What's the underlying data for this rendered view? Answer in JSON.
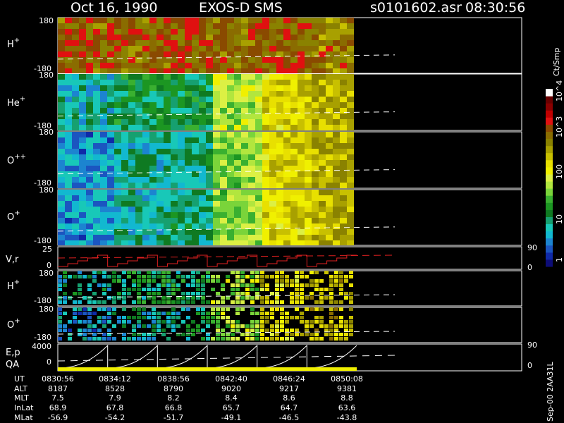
{
  "header": {
    "date": "Oct 16, 1990",
    "instrument": "EXOS-D SMS",
    "file": "s0101602.asr",
    "time": "08:30:56"
  },
  "colorbar": {
    "unit": "Ct/Smp",
    "labels": [
      "1",
      "10",
      "100",
      "10^3",
      "10^4"
    ],
    "colors": [
      "#0d0d78",
      "#0f2aa8",
      "#1b55c0",
      "#1c84d0",
      "#12b8d0",
      "#18c8b8",
      "#16a070",
      "#0f7a22",
      "#1c9622",
      "#3ab030",
      "#7ad43a",
      "#b2e63e",
      "#dcf044",
      "#f0f000",
      "#e8e000",
      "#c8c000",
      "#a8a000",
      "#8a8200",
      "#8a6c00",
      "#8a4a00",
      "#e01010",
      "#c00000",
      "#8a0000",
      "#6a0000",
      "#ffffff"
    ]
  },
  "panels": [
    {
      "id": "h-plus",
      "label": "H+",
      "sup": "+",
      "base": "H",
      "ymax": "180",
      "ymin": "-180"
    },
    {
      "id": "he-plus",
      "label": "He+",
      "sup": "+",
      "base": "He",
      "ymax": "180",
      "ymin": "-180"
    },
    {
      "id": "o-plusplus",
      "label": "O++",
      "sup": "++",
      "base": "O",
      "ymax": "180",
      "ymin": "-180"
    },
    {
      "id": "o-plus",
      "label": "O+",
      "sup": "+",
      "base": "O",
      "ymax": "180",
      "ymin": "-180"
    }
  ],
  "vr_panel": {
    "label": "V,r",
    "ymax_left": "25",
    "ymin_left": "0",
    "ymax_right": "90",
    "ymin_right": "0"
  },
  "small_panels": [
    {
      "id": "h-plus-2",
      "base": "H",
      "sup": "+",
      "ymax": "180",
      "ymin": "-180"
    },
    {
      "id": "o-plus-2",
      "base": "O",
      "sup": "+",
      "ymax": "180",
      "ymin": "-180"
    }
  ],
  "ep_panel": {
    "label": "E,p",
    "ymax_left": "4000",
    "ymin_left": "0",
    "ymax_right": "90",
    "ymin_right": "0"
  },
  "qa_label": "QA",
  "footer": {
    "row_labels": [
      "UT",
      "ALT",
      "MLT",
      "InLat",
      "MLat"
    ],
    "columns": [
      {
        "UT": "0830:56",
        "ALT": "8187",
        "MLT": "7.5",
        "InLat": "68.9",
        "MLat": "-56.9"
      },
      {
        "UT": "0834:12",
        "ALT": "8528",
        "MLT": "7.9",
        "InLat": "67.8",
        "MLat": "-54.2"
      },
      {
        "UT": "0838:56",
        "ALT": "8790",
        "MLT": "8.2",
        "InLat": "66.8",
        "MLat": "-51.7"
      },
      {
        "UT": "0842:40",
        "ALT": "9020",
        "MLT": "8.4",
        "InLat": "65.7",
        "MLat": "-49.1"
      },
      {
        "UT": "0846:24",
        "ALT": "9217",
        "MLT": "8.6",
        "InLat": "64.7",
        "MLat": "-46.5"
      },
      {
        "UT": "0850:08",
        "ALT": "9381",
        "MLT": "8.8",
        "InLat": "63.6",
        "MLat": "-43.8"
      }
    ]
  },
  "credit": "Sep-00 2AA31L",
  "chart_data": {
    "type": "heatmap",
    "x": [
      "0830:56",
      "0834:12",
      "0838:56",
      "0842:40",
      "0846:24",
      "0850:08"
    ],
    "ylim": [
      -180,
      180
    ],
    "colorscale": "log",
    "colorbar_range": [
      1,
      10000
    ],
    "series": [
      {
        "name": "H+",
        "level_by_segment": [
          3.2,
          3.1,
          3.2,
          3.1,
          3.2,
          3.0
        ]
      },
      {
        "name": "He+",
        "level_by_segment": [
          0.9,
          1.2,
          1.2,
          1.9,
          2.5,
          2.7
        ]
      },
      {
        "name": "O++",
        "level_by_segment": [
          0.6,
          0.9,
          1.0,
          1.8,
          2.5,
          2.7
        ]
      },
      {
        "name": "O+",
        "level_by_segment": [
          0.6,
          0.9,
          1.0,
          1.8,
          2.5,
          2.7
        ]
      }
    ]
  }
}
